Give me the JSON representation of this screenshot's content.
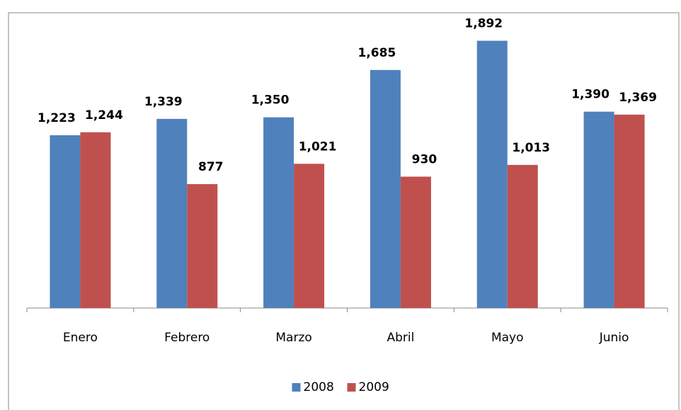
{
  "chart_data": {
    "type": "bar",
    "categories": [
      "Enero",
      "Febrero",
      "Marzo",
      "Abril",
      "Mayo",
      "Junio"
    ],
    "series": [
      {
        "name": "2008",
        "color": "#4f81bd",
        "values": [
          1223,
          1339,
          1350,
          1685,
          1892,
          1390
        ],
        "value_labels": [
          "1,223",
          "1,339",
          "1,350",
          "1,685",
          "1,892",
          "1,390"
        ]
      },
      {
        "name": "2009",
        "color": "#c0504d",
        "values": [
          1244,
          877,
          1021,
          930,
          1013,
          1369
        ],
        "value_labels": [
          "1,244",
          "877",
          "1,021",
          "930",
          "1,013",
          "1,369"
        ]
      }
    ],
    "ylim": [
      0,
      2000
    ],
    "legend": "bottom"
  }
}
